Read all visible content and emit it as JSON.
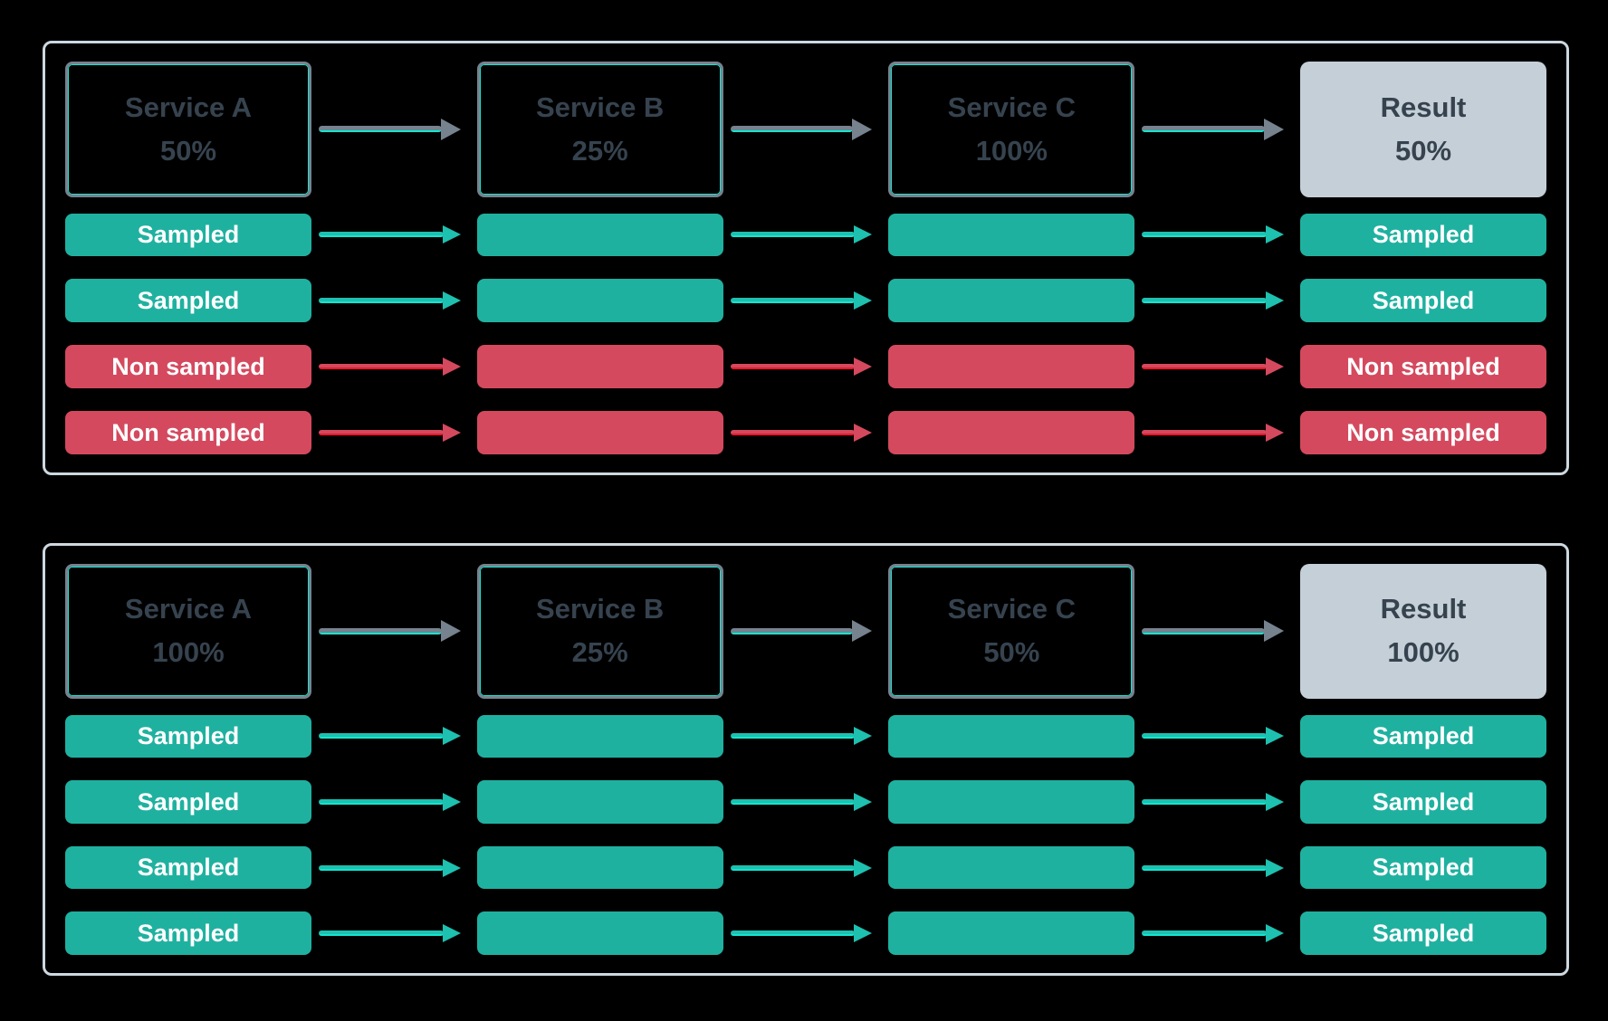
{
  "colors": {
    "teal": "#1FB1A0",
    "red": "#D4495E",
    "slate": "#36434F",
    "panel_border": "#CDD8E0",
    "box_border": "#76828E",
    "result_bg": "#C5CFD8",
    "accent_cyan": "#12E6D0",
    "accent_red": "#F01428",
    "arrow_gray": "#76828E",
    "arrow_teal": "#1EC0B0",
    "bar_label": "#FFFFFF",
    "bg": "#000000"
  },
  "icons": {
    "flow_arrow": "right-arrow"
  },
  "panels": [
    {
      "services": [
        {
          "label": "Service A",
          "rate": "50%"
        },
        {
          "label": "Service B",
          "rate": "25%"
        },
        {
          "label": "Service C",
          "rate": "100%"
        },
        {
          "label": "Result",
          "rate": "50%"
        }
      ],
      "rows": [
        {
          "label": "Sampled",
          "type": "sampled"
        },
        {
          "label": "Sampled",
          "type": "sampled"
        },
        {
          "label": "Non sampled",
          "type": "non-sampled"
        },
        {
          "label": "Non sampled",
          "type": "non-sampled"
        }
      ]
    },
    {
      "services": [
        {
          "label": "Service A",
          "rate": "100%"
        },
        {
          "label": "Service B",
          "rate": "25%"
        },
        {
          "label": "Service C",
          "rate": "50%"
        },
        {
          "label": "Result",
          "rate": "100%"
        }
      ],
      "rows": [
        {
          "label": "Sampled",
          "type": "sampled"
        },
        {
          "label": "Sampled",
          "type": "sampled"
        },
        {
          "label": "Sampled",
          "type": "sampled"
        },
        {
          "label": "Sampled",
          "type": "sampled"
        }
      ]
    }
  ]
}
